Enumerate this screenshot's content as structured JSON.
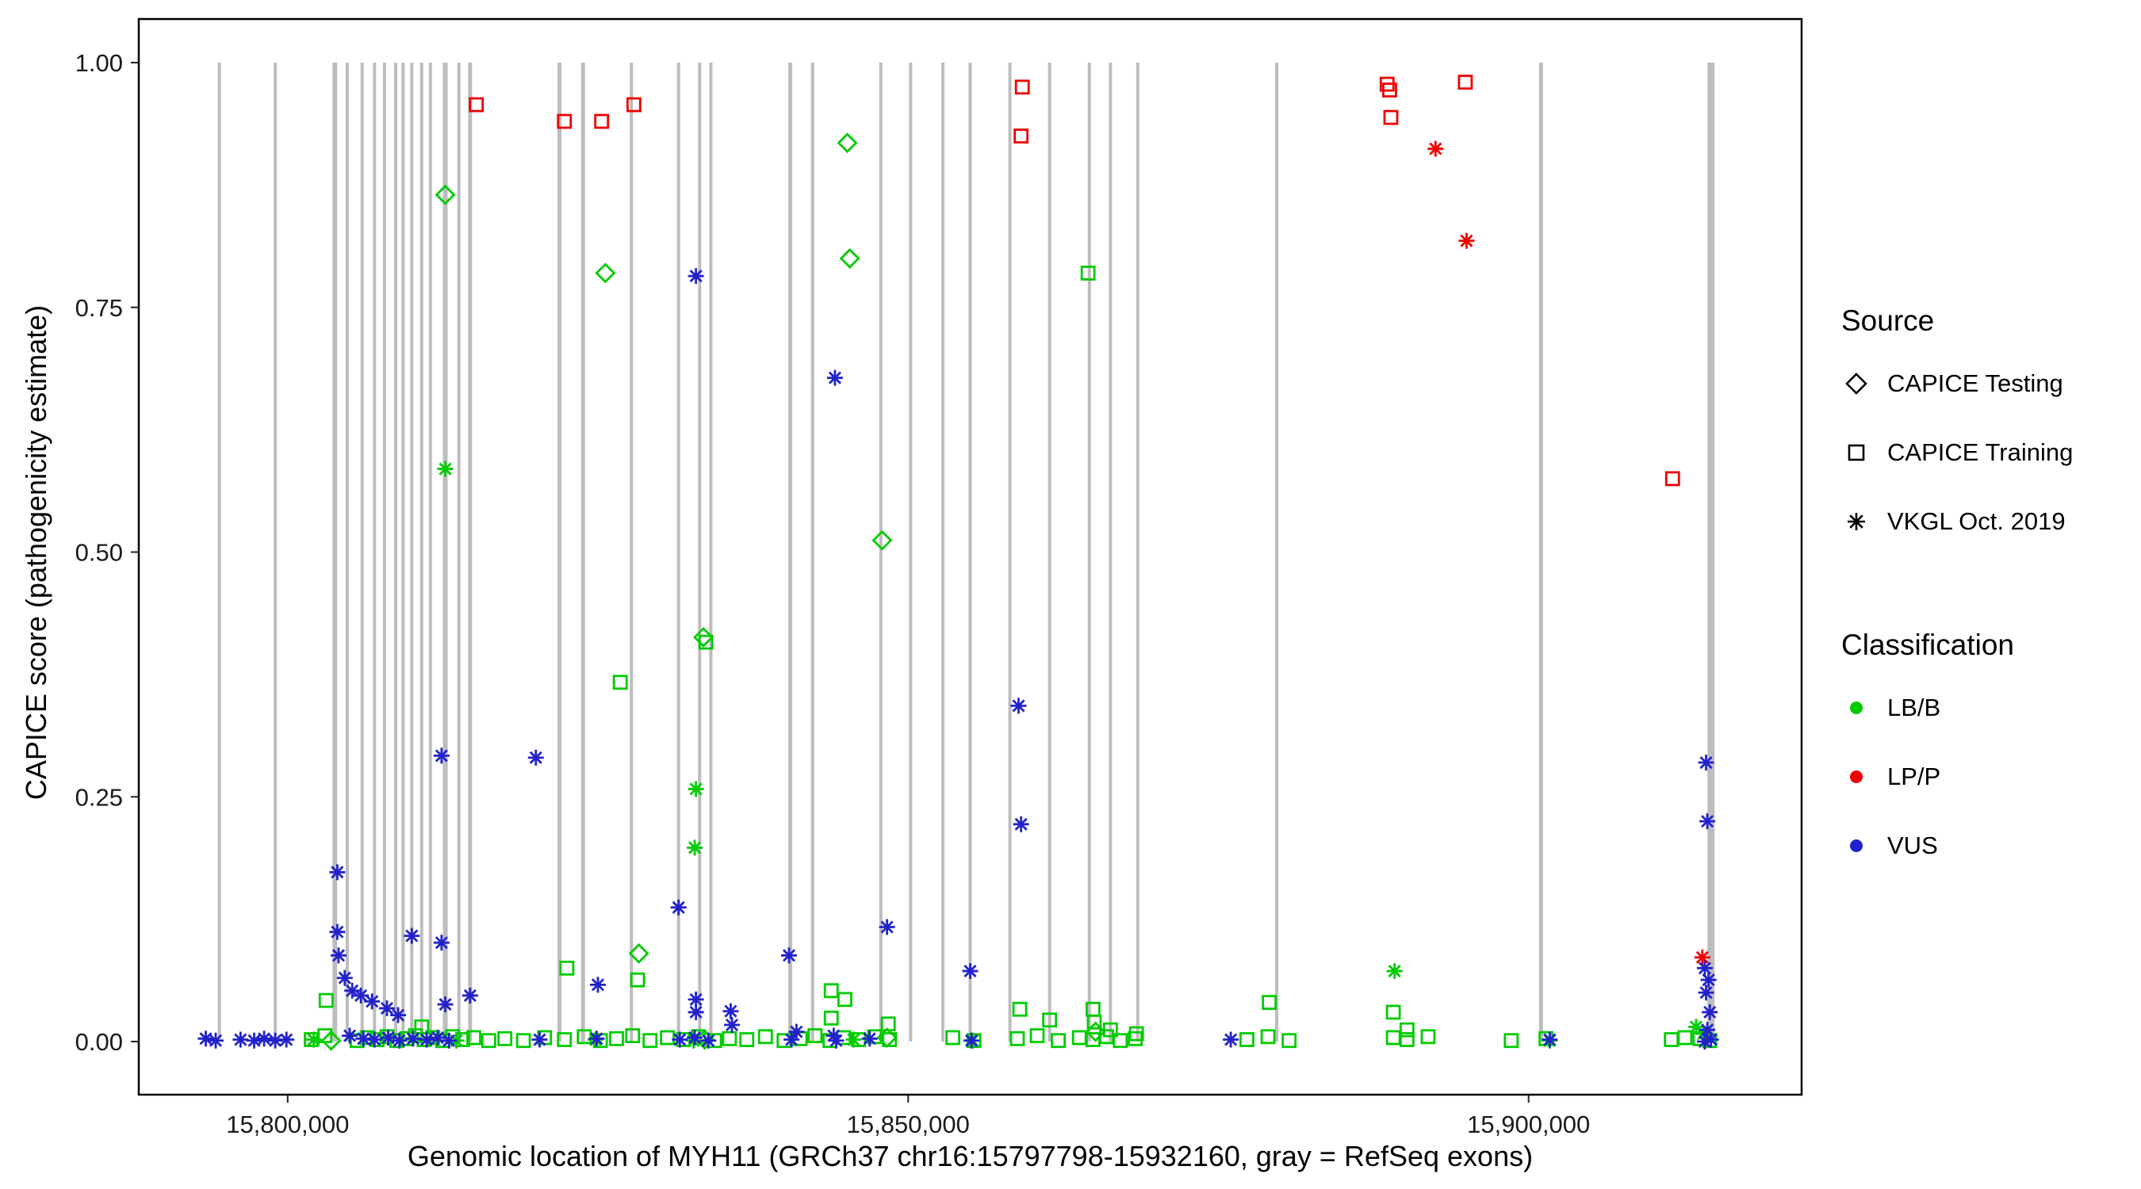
{
  "axes": {
    "x_label": "Genomic location of MYH11 (GRCh37 chr16:15797798-15932160, gray = RefSeq exons)",
    "y_label": "CAPICE score (pathogenicity estimate)",
    "x_ticks": [
      {
        "value": 15800000,
        "label": "15,800,000"
      },
      {
        "value": 15850000,
        "label": "15,850,000"
      },
      {
        "value": 15900000,
        "label": "15,900,000"
      }
    ],
    "y_ticks": [
      {
        "value": 0.0,
        "label": "0.00"
      },
      {
        "value": 0.25,
        "label": "0.25"
      },
      {
        "value": 0.5,
        "label": "0.50"
      },
      {
        "value": 0.75,
        "label": "0.75"
      },
      {
        "value": 1.0,
        "label": "1.00"
      }
    ]
  },
  "legend": {
    "source": {
      "title": "Source",
      "items": [
        {
          "label": "CAPICE Testing",
          "symbol": "diamond"
        },
        {
          "label": "CAPICE Training",
          "symbol": "square"
        },
        {
          "label": "VKGL Oct. 2019",
          "symbol": "asterisk"
        }
      ]
    },
    "classification": {
      "title": "Classification",
      "items": [
        {
          "label": "LB/B",
          "color": "#00CC00"
        },
        {
          "label": "LP/P",
          "color": "#EE0000"
        },
        {
          "label": "VUS",
          "color": "#2222CC"
        }
      ]
    }
  },
  "chart_data": {
    "type": "scatter",
    "title": "",
    "xlabel": "Genomic location of MYH11 (GRCh37 chr16:15797798-15932160, gray = RefSeq exons)",
    "ylabel": "CAPICE score (pathogenicity estimate)",
    "xlim": [
      15788000,
      15922000
    ],
    "ylim": [
      0,
      1
    ],
    "grid": false,
    "legend_position": "right",
    "exon_color": "#BDBDBD",
    "exons": [
      {
        "x": 15794500,
        "w": 4
      },
      {
        "x": 15799000,
        "w": 4
      },
      {
        "x": 15803800,
        "w": 6
      },
      {
        "x": 15804800,
        "w": 4
      },
      {
        "x": 15806000,
        "w": 4
      },
      {
        "x": 15807000,
        "w": 4
      },
      {
        "x": 15807800,
        "w": 4
      },
      {
        "x": 15808700,
        "w": 4
      },
      {
        "x": 15809300,
        "w": 4
      },
      {
        "x": 15810000,
        "w": 4
      },
      {
        "x": 15810800,
        "w": 4
      },
      {
        "x": 15811500,
        "w": 4
      },
      {
        "x": 15812700,
        "w": 6
      },
      {
        "x": 15813800,
        "w": 4
      },
      {
        "x": 15814700,
        "w": 5
      },
      {
        "x": 15821900,
        "w": 5
      },
      {
        "x": 15823800,
        "w": 5
      },
      {
        "x": 15827700,
        "w": 4
      },
      {
        "x": 15831500,
        "w": 4
      },
      {
        "x": 15833200,
        "w": 4
      },
      {
        "x": 15834100,
        "w": 4
      },
      {
        "x": 15840500,
        "w": 5
      },
      {
        "x": 15842300,
        "w": 4
      },
      {
        "x": 15847800,
        "w": 4
      },
      {
        "x": 15850200,
        "w": 4
      },
      {
        "x": 15852800,
        "w": 4
      },
      {
        "x": 15855000,
        "w": 4
      },
      {
        "x": 15858200,
        "w": 4
      },
      {
        "x": 15861400,
        "w": 4
      },
      {
        "x": 15864600,
        "w": 4
      },
      {
        "x": 15866300,
        "w": 4
      },
      {
        "x": 15868500,
        "w": 4
      },
      {
        "x": 15879700,
        "w": 4
      },
      {
        "x": 15901000,
        "w": 5
      },
      {
        "x": 15914700,
        "w": 9
      }
    ],
    "series": [
      {
        "name": "CAPICE Testing / LB/B",
        "source": "CAPICE Testing",
        "classification": "LB/B",
        "symbol": "diamond",
        "color": "#00CC00",
        "points": [
          [
            15812700,
            0.865
          ],
          [
            15825600,
            0.785
          ],
          [
            15845100,
            0.918
          ],
          [
            15845300,
            0.8
          ],
          [
            15847900,
            0.512
          ],
          [
            15833500,
            0.413
          ],
          [
            15828300,
            0.09
          ],
          [
            15865100,
            0.01
          ],
          [
            15848300,
            0.004
          ],
          [
            15833600,
            0.002
          ],
          [
            15803500,
            0.001
          ]
        ]
      },
      {
        "name": "CAPICE Training / LP/P",
        "source": "CAPICE Training",
        "classification": "LP/P",
        "symbol": "square",
        "color": "#EE0000",
        "points": [
          [
            15815200,
            0.957
          ],
          [
            15822300,
            0.94
          ],
          [
            15825300,
            0.94
          ],
          [
            15827900,
            0.957
          ],
          [
            15859200,
            0.975
          ],
          [
            15859100,
            0.925
          ],
          [
            15888600,
            0.978
          ],
          [
            15888800,
            0.972
          ],
          [
            15888900,
            0.944
          ],
          [
            15894900,
            0.98
          ],
          [
            15911600,
            0.575
          ]
        ]
      },
      {
        "name": "CAPICE Training / LB/B",
        "source": "CAPICE Training",
        "classification": "LB/B",
        "symbol": "square",
        "color": "#00CC00",
        "points": [
          [
            15864500,
            0.785
          ],
          [
            15833700,
            0.408
          ],
          [
            15826800,
            0.367
          ],
          [
            15822500,
            0.075
          ],
          [
            15828200,
            0.063
          ],
          [
            15843800,
            0.052
          ],
          [
            15844900,
            0.043
          ],
          [
            15803100,
            0.042
          ],
          [
            15879100,
            0.04
          ],
          [
            15859000,
            0.033
          ],
          [
            15864900,
            0.033
          ],
          [
            15889100,
            0.03
          ],
          [
            15843800,
            0.024
          ],
          [
            15861400,
            0.022
          ],
          [
            15865000,
            0.02
          ],
          [
            15848400,
            0.018
          ],
          [
            15810800,
            0.015
          ],
          [
            15890200,
            0.012
          ],
          [
            15866300,
            0.012
          ],
          [
            15868400,
            0.008
          ],
          [
            15801900,
            0.002
          ],
          [
            15803000,
            0.006
          ],
          [
            15805600,
            0.001
          ],
          [
            15806400,
            0.004
          ],
          [
            15807200,
            0.002
          ],
          [
            15808000,
            0.005
          ],
          [
            15808800,
            0.001
          ],
          [
            15809600,
            0.003
          ],
          [
            15810300,
            0.006
          ],
          [
            15811000,
            0.002
          ],
          [
            15811700,
            0.004
          ],
          [
            15812500,
            0.001
          ],
          [
            15813300,
            0.005
          ],
          [
            15814100,
            0.002
          ],
          [
            15815000,
            0.004
          ],
          [
            15816200,
            0.001
          ],
          [
            15817500,
            0.003
          ],
          [
            15819000,
            0.001
          ],
          [
            15820700,
            0.004
          ],
          [
            15822300,
            0.002
          ],
          [
            15823900,
            0.005
          ],
          [
            15825200,
            0.001
          ],
          [
            15826500,
            0.003
          ],
          [
            15827800,
            0.006
          ],
          [
            15829200,
            0.001
          ],
          [
            15830600,
            0.004
          ],
          [
            15831900,
            0.002
          ],
          [
            15833100,
            0.005
          ],
          [
            15834400,
            0.001
          ],
          [
            15835600,
            0.003
          ],
          [
            15837000,
            0.002
          ],
          [
            15838500,
            0.005
          ],
          [
            15840000,
            0.001
          ],
          [
            15841300,
            0.003
          ],
          [
            15842500,
            0.006
          ],
          [
            15843700,
            0.001
          ],
          [
            15844800,
            0.004
          ],
          [
            15846000,
            0.002
          ],
          [
            15847300,
            0.005
          ],
          [
            15848500,
            0.002
          ],
          [
            15853600,
            0.004
          ],
          [
            15855300,
            0.001
          ],
          [
            15858800,
            0.003
          ],
          [
            15860400,
            0.006
          ],
          [
            15862100,
            0.001
          ],
          [
            15863800,
            0.004
          ],
          [
            15864900,
            0.002
          ],
          [
            15866000,
            0.005
          ],
          [
            15867100,
            0.001
          ],
          [
            15868300,
            0.003
          ],
          [
            15877300,
            0.002
          ],
          [
            15879000,
            0.005
          ],
          [
            15880700,
            0.001
          ],
          [
            15889100,
            0.004
          ],
          [
            15890200,
            0.002
          ],
          [
            15891900,
            0.005
          ],
          [
            15898600,
            0.001
          ],
          [
            15901400,
            0.003
          ],
          [
            15911500,
            0.002
          ],
          [
            15912600,
            0.004
          ],
          [
            15913800,
            0.003
          ],
          [
            15914600,
            0.001
          ]
        ]
      },
      {
        "name": "VKGL Oct. 2019 / LB/B",
        "source": "VKGL Oct. 2019",
        "classification": "LB/B",
        "symbol": "asterisk",
        "color": "#00CC00",
        "points": [
          [
            15812700,
            0.585
          ],
          [
            15832900,
            0.258
          ],
          [
            15832800,
            0.198
          ],
          [
            15889200,
            0.072
          ],
          [
            15913500,
            0.015
          ],
          [
            15914100,
            0.008
          ],
          [
            15802100,
            0.002
          ],
          [
            15813600,
            0.001
          ],
          [
            15824800,
            0.002
          ],
          [
            15832700,
            0.001
          ],
          [
            15845600,
            0.002
          ],
          [
            15855200,
            0.001
          ],
          [
            15901700,
            0.001
          ]
        ]
      },
      {
        "name": "VKGL Oct. 2019 / LP/P",
        "source": "VKGL Oct. 2019",
        "classification": "LP/P",
        "symbol": "asterisk",
        "color": "#EE0000",
        "points": [
          [
            15892500,
            0.912
          ],
          [
            15895000,
            0.818
          ],
          [
            15914000,
            0.086
          ]
        ]
      },
      {
        "name": "VKGL Oct. 2019 / VUS",
        "source": "VKGL Oct. 2019",
        "classification": "VUS",
        "symbol": "asterisk",
        "color": "#2222CC",
        "points": [
          [
            15832900,
            0.782
          ],
          [
            15844100,
            0.678
          ],
          [
            15858900,
            0.343
          ],
          [
            15812400,
            0.292
          ],
          [
            15820000,
            0.29
          ],
          [
            15859100,
            0.222
          ],
          [
            15804000,
            0.173
          ],
          [
            15831500,
            0.137
          ],
          [
            15848300,
            0.117
          ],
          [
            15804000,
            0.112
          ],
          [
            15810000,
            0.108
          ],
          [
            15812400,
            0.101
          ],
          [
            15804100,
            0.088
          ],
          [
            15840400,
            0.088
          ],
          [
            15855000,
            0.072
          ],
          [
            15804600,
            0.065
          ],
          [
            15825000,
            0.058
          ],
          [
            15805200,
            0.052
          ],
          [
            15814700,
            0.047
          ],
          [
            15805900,
            0.047
          ],
          [
            15832900,
            0.043
          ],
          [
            15806800,
            0.041
          ],
          [
            15812700,
            0.038
          ],
          [
            15808000,
            0.034
          ],
          [
            15835700,
            0.031
          ],
          [
            15832900,
            0.03
          ],
          [
            15808900,
            0.027
          ],
          [
            15835800,
            0.017
          ],
          [
            15841000,
            0.01
          ],
          [
            15844000,
            0.006
          ],
          [
            15793400,
            0.003
          ],
          [
            15794200,
            0.001
          ],
          [
            15796200,
            0.002
          ],
          [
            15797300,
            0.001
          ],
          [
            15798100,
            0.003
          ],
          [
            15799000,
            0.001
          ],
          [
            15799900,
            0.002
          ],
          [
            15805000,
            0.006
          ],
          [
            15806100,
            0.003
          ],
          [
            15807000,
            0.002
          ],
          [
            15808100,
            0.004
          ],
          [
            15809000,
            0.001
          ],
          [
            15810100,
            0.003
          ],
          [
            15811200,
            0.002
          ],
          [
            15812100,
            0.004
          ],
          [
            15813000,
            0.001
          ],
          [
            15820300,
            0.002
          ],
          [
            15824900,
            0.003
          ],
          [
            15831600,
            0.002
          ],
          [
            15832800,
            0.004
          ],
          [
            15833900,
            0.001
          ],
          [
            15840600,
            0.002
          ],
          [
            15844200,
            0.001
          ],
          [
            15846900,
            0.003
          ],
          [
            15855100,
            0.001
          ],
          [
            15876000,
            0.002
          ],
          [
            15901700,
            0.002
          ],
          [
            15914300,
            0.285
          ],
          [
            15914400,
            0.225
          ],
          [
            15914200,
            0.075
          ],
          [
            15914500,
            0.063
          ],
          [
            15914300,
            0.05
          ],
          [
            15914600,
            0.03
          ],
          [
            15914400,
            0.012
          ],
          [
            15914700,
            0.002
          ],
          [
            15914200,
            0.0
          ]
        ]
      }
    ]
  }
}
